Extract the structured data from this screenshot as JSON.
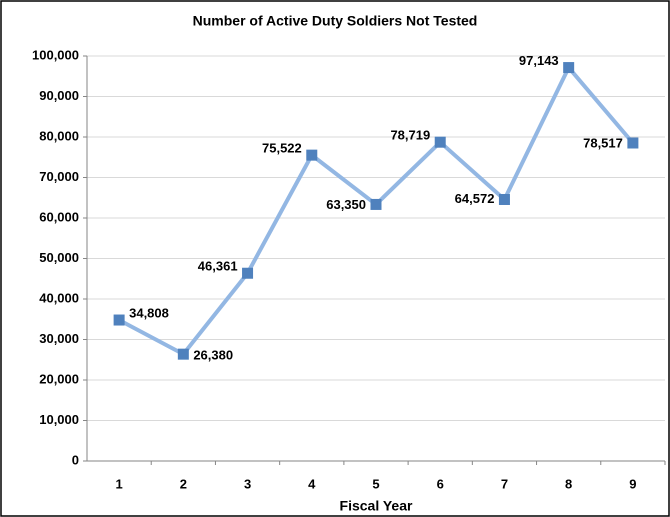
{
  "chart_data": {
    "type": "line",
    "title": "Number of Active Duty Soldiers Not Tested",
    "x_label": "Fiscal Year",
    "categories": [
      "1",
      "2",
      "3",
      "4",
      "5",
      "6",
      "7",
      "8",
      "9"
    ],
    "values": [
      34808,
      26380,
      46361,
      75522,
      63350,
      78719,
      64572,
      97143,
      78517
    ],
    "value_labels": [
      "34,808",
      "26,380",
      "46,361",
      "75,522",
      "63,350",
      "78,719",
      "64,572",
      "97,143",
      "78,517"
    ],
    "color": "#93b7e3",
    "marker_color": "#4f81bd",
    "ylim": [
      0,
      100000
    ],
    "yticks": [
      0,
      {
        "value": 10000,
        "label": "10,000"
      },
      {
        "value": 20000,
        "label": "20,000"
      },
      {
        "value": 30000,
        "label": "30,000"
      },
      {
        "value": 40000,
        "label": "40,000"
      },
      {
        "value": 50000,
        "label": "50,000"
      },
      {
        "value": 60000,
        "label": "60,000"
      },
      {
        "value": 70000,
        "label": "70,000"
      },
      {
        "value": 80000,
        "label": "80,000"
      },
      {
        "value": 90000,
        "label": "90,000"
      },
      {
        "value": 100000,
        "label": "100,000"
      }
    ],
    "grid": true
  }
}
